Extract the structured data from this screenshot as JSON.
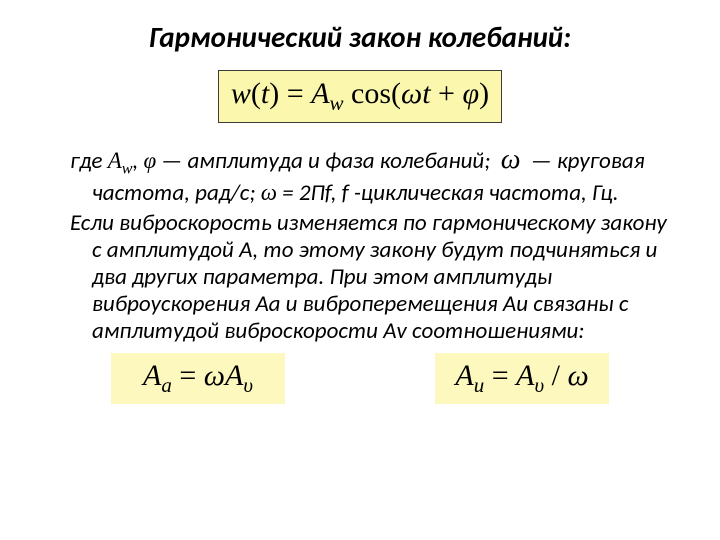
{
  "title": "Гармонический закон колебаний:",
  "formula_main": {
    "text": "w(t) = A_w cos(ωt + φ)",
    "bg": "#fbf7ad",
    "border": "#3c3c3c",
    "fontsize": 30
  },
  "para1_parts": {
    "a": "где ",
    "b": "A",
    "bsub": "w",
    "c": ", ",
    "d": "φ",
    "e": " — амплитуда и фаза колебаний; ",
    "f": "ω",
    "g": " — круговая частота, рад/с; ",
    "h": "ω",
    "i": " = 2Пf, f -циклическая частота, Гц."
  },
  "para2": "Если виброскорость изменяется по гармоническому закону с амплитудой А, то этому закону будут подчиняться и два других параметра. При этом амплитуды виброускорения Аа и виброперемещения Аи связаны с амплитудой виброскорости Аv соотношениями:",
  "formula_a": {
    "text": "A_a = ω A_υ",
    "bg": "#fdf8bd"
  },
  "formula_u": {
    "text": "A_u = A_υ / ω",
    "bg": "#fdf8bd"
  },
  "colors": {
    "background": "#ffffff",
    "text": "#000000"
  },
  "fonts": {
    "body": "Calibri, Arial, sans-serif",
    "math": "Times New Roman, serif",
    "title_size": 29,
    "body_size": 23
  }
}
